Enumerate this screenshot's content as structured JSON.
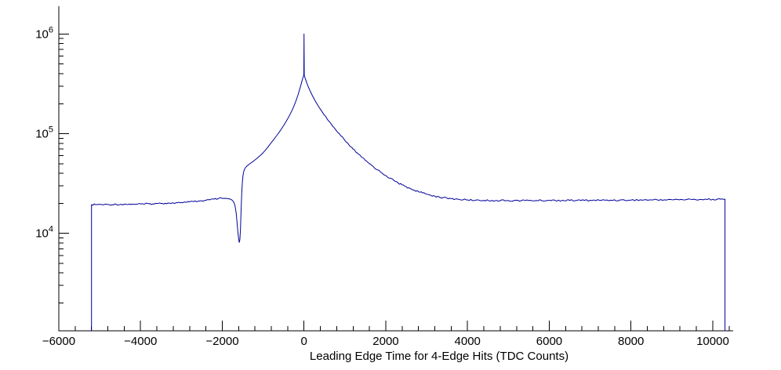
{
  "chart_data": {
    "type": "line",
    "title": "",
    "xlabel": "Leading Edge Time for 4-Edge Hits (TDC Counts)",
    "ylabel": "",
    "xlim": [
      -6000,
      10500
    ],
    "ylim": [
      1050,
      1900000
    ],
    "ylog": true,
    "grid": false,
    "legend": "none",
    "line_color": "#00009a",
    "axis_color": "#000000",
    "background": "#ffffff",
    "x_ticks": [
      {
        "value": -6000,
        "label": "−6000"
      },
      {
        "value": -4000,
        "label": "−4000"
      },
      {
        "value": -2000,
        "label": "−2000"
      },
      {
        "value": 0,
        "label": "0"
      },
      {
        "value": 2000,
        "label": "2000"
      },
      {
        "value": 4000,
        "label": "4000"
      },
      {
        "value": 6000,
        "label": "6000"
      },
      {
        "value": 8000,
        "label": "8000"
      },
      {
        "value": 10000,
        "label": "10000"
      }
    ],
    "y_ticks": [
      {
        "value": 10000,
        "base": "10",
        "exp": "4"
      },
      {
        "value": 100000,
        "base": "10",
        "exp": "5"
      },
      {
        "value": 1000000,
        "base": "10",
        "exp": "6"
      }
    ],
    "points": [
      [
        -5200,
        1050
      ],
      [
        -5200,
        19400
      ],
      [
        -5100,
        19400
      ],
      [
        -5000,
        19500
      ],
      [
        -4900,
        19350
      ],
      [
        -4800,
        19450
      ],
      [
        -4700,
        19400
      ],
      [
        -4600,
        19550
      ],
      [
        -4500,
        19450
      ],
      [
        -4400,
        19600
      ],
      [
        -4300,
        19500
      ],
      [
        -4200,
        19650
      ],
      [
        -4100,
        19600
      ],
      [
        -4000,
        19700
      ],
      [
        -3900,
        19650
      ],
      [
        -3800,
        19800
      ],
      [
        -3700,
        19750
      ],
      [
        -3600,
        19900
      ],
      [
        -3500,
        19950
      ],
      [
        -3400,
        20050
      ],
      [
        -3300,
        20100
      ],
      [
        -3200,
        20200
      ],
      [
        -3100,
        20250
      ],
      [
        -3000,
        20400
      ],
      [
        -2900,
        20500
      ],
      [
        -2800,
        20650
      ],
      [
        -2700,
        20800
      ],
      [
        -2600,
        21000
      ],
      [
        -2500,
        21200
      ],
      [
        -2400,
        21450
      ],
      [
        -2300,
        21700
      ],
      [
        -2200,
        22000
      ],
      [
        -2100,
        22250
      ],
      [
        -2000,
        22400
      ],
      [
        -1950,
        22450
      ],
      [
        -1900,
        22400
      ],
      [
        -1850,
        22250
      ],
      [
        -1800,
        22000
      ],
      [
        -1760,
        21500
      ],
      [
        -1720,
        20600
      ],
      [
        -1690,
        19000
      ],
      [
        -1660,
        16000
      ],
      [
        -1640,
        13000
      ],
      [
        -1620,
        10500
      ],
      [
        -1600,
        8800
      ],
      [
        -1585,
        8100
      ],
      [
        -1570,
        8600
      ],
      [
        -1555,
        11000
      ],
      [
        -1540,
        17000
      ],
      [
        -1525,
        25000
      ],
      [
        -1510,
        32000
      ],
      [
        -1495,
        37500
      ],
      [
        -1480,
        41000
      ],
      [
        -1460,
        43500
      ],
      [
        -1440,
        45200
      ],
      [
        -1400,
        47200
      ],
      [
        -1350,
        49000
      ],
      [
        -1300,
        50800
      ],
      [
        -1250,
        52500
      ],
      [
        -1200,
        54500
      ],
      [
        -1150,
        56500
      ],
      [
        -1100,
        59000
      ],
      [
        -1050,
        61500
      ],
      [
        -1000,
        64500
      ],
      [
        -950,
        68000
      ],
      [
        -900,
        72000
      ],
      [
        -850,
        76500
      ],
      [
        -800,
        81500
      ],
      [
        -750,
        86500
      ],
      [
        -700,
        92000
      ],
      [
        -650,
        98000
      ],
      [
        -600,
        104500
      ],
      [
        -550,
        112000
      ],
      [
        -500,
        120500
      ],
      [
        -450,
        130000
      ],
      [
        -400,
        141000
      ],
      [
        -350,
        154000
      ],
      [
        -300,
        169000
      ],
      [
        -250,
        188000
      ],
      [
        -200,
        212000
      ],
      [
        -150,
        243000
      ],
      [
        -100,
        285000
      ],
      [
        -70,
        315000
      ],
      [
        -40,
        350000
      ],
      [
        -20,
        372000
      ],
      [
        -5,
        388000
      ],
      [
        0,
        1000000
      ],
      [
        5,
        385000
      ],
      [
        20,
        368000
      ],
      [
        40,
        348000
      ],
      [
        70,
        320000
      ],
      [
        100,
        298000
      ],
      [
        150,
        268000
      ],
      [
        200,
        243000
      ],
      [
        250,
        222000
      ],
      [
        300,
        204000
      ],
      [
        350,
        189000
      ],
      [
        400,
        176000
      ],
      [
        450,
        164000
      ],
      [
        500,
        153000
      ],
      [
        600,
        134500
      ],
      [
        700,
        119000
      ],
      [
        800,
        106000
      ],
      [
        900,
        95000
      ],
      [
        1000,
        85500
      ],
      [
        1100,
        77000
      ],
      [
        1200,
        70000
      ],
      [
        1300,
        64000
      ],
      [
        1400,
        58500
      ],
      [
        1500,
        54000
      ],
      [
        1600,
        50000
      ],
      [
        1700,
        46500
      ],
      [
        1800,
        43300
      ],
      [
        1900,
        40500
      ],
      [
        2000,
        38000
      ],
      [
        2100,
        35800
      ],
      [
        2200,
        33800
      ],
      [
        2300,
        32100
      ],
      [
        2400,
        30600
      ],
      [
        2500,
        29300
      ],
      [
        2600,
        28100
      ],
      [
        2700,
        27100
      ],
      [
        2800,
        26200
      ],
      [
        2900,
        25400
      ],
      [
        3000,
        24700
      ],
      [
        3100,
        24100
      ],
      [
        3200,
        23600
      ],
      [
        3300,
        23200
      ],
      [
        3400,
        22800
      ],
      [
        3500,
        22500
      ],
      [
        3600,
        22250
      ],
      [
        3700,
        22050
      ],
      [
        3800,
        21900
      ],
      [
        3900,
        21750
      ],
      [
        4000,
        21650
      ],
      [
        4200,
        21500
      ],
      [
        4400,
        21400
      ],
      [
        4600,
        21350
      ],
      [
        4800,
        21300
      ],
      [
        5000,
        21300
      ],
      [
        5500,
        21350
      ],
      [
        6000,
        21400
      ],
      [
        6500,
        21400
      ],
      [
        7000,
        21450
      ],
      [
        7500,
        21500
      ],
      [
        8000,
        21550
      ],
      [
        8500,
        21650
      ],
      [
        9000,
        21750
      ],
      [
        9500,
        21850
      ],
      [
        10000,
        21950
      ],
      [
        10200,
        22000
      ],
      [
        10300,
        22000
      ],
      [
        10300,
        1050
      ]
    ]
  }
}
